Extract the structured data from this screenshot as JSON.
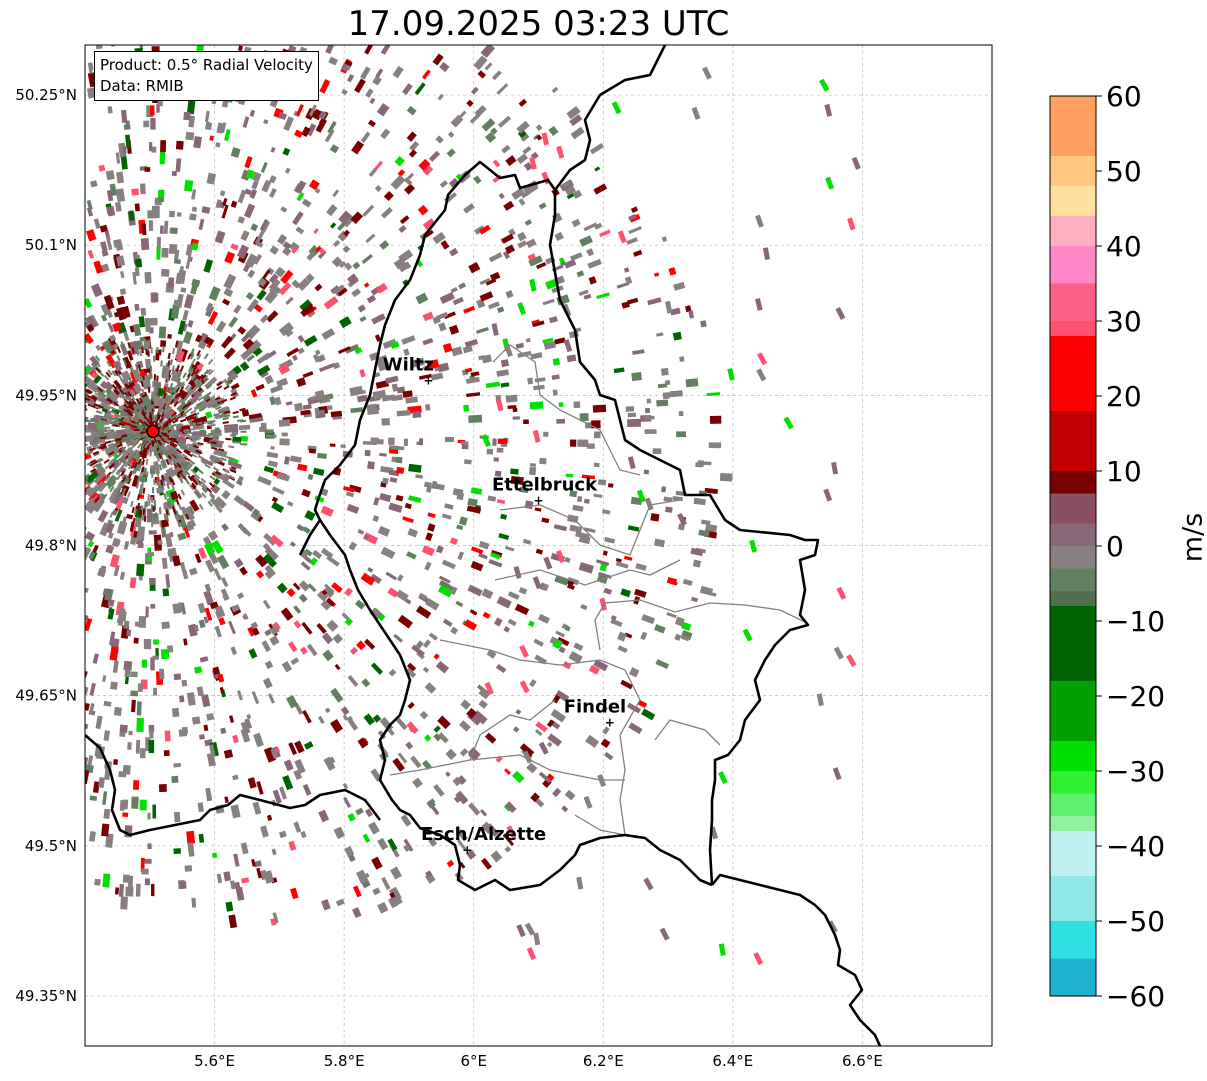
{
  "title": "17.09.2025 03:23 UTC",
  "info": {
    "product": "Product: 0.5° Radial Velocity",
    "data": "Data: RMIB"
  },
  "axes": {
    "lon_ticks": [
      {
        "value": 5.6,
        "label": "5.6°E"
      },
      {
        "value": 5.8,
        "label": "5.8°E"
      },
      {
        "value": 6.0,
        "label": "6°E"
      },
      {
        "value": 6.2,
        "label": "6.2°E"
      },
      {
        "value": 6.4,
        "label": "6.4°E"
      },
      {
        "value": 6.6,
        "label": "6.6°E"
      }
    ],
    "lat_ticks": [
      {
        "value": 50.25,
        "label": "50.25°N"
      },
      {
        "value": 50.1,
        "label": "50.1°N"
      },
      {
        "value": 49.95,
        "label": "49.95°N"
      },
      {
        "value": 49.8,
        "label": "49.8°N"
      },
      {
        "value": 49.65,
        "label": "49.65°N"
      },
      {
        "value": 49.5,
        "label": "49.5°N"
      },
      {
        "value": 49.35,
        "label": "49.35°N"
      }
    ],
    "lon_range": [
      5.4,
      6.8
    ],
    "lat_range": [
      49.3,
      50.3
    ]
  },
  "cities": [
    {
      "name": "Wiltz",
      "lon": 5.93,
      "lat": 49.965
    },
    {
      "name": "Ettelbruck",
      "lon": 6.1,
      "lat": 49.845
    },
    {
      "name": "Findel",
      "lon": 6.21,
      "lat": 49.623
    },
    {
      "name": "Esch/Alzette",
      "lon": 5.99,
      "lat": 49.496
    }
  ],
  "radar": {
    "lon": 5.505,
    "lat": 49.914
  },
  "colorbar": {
    "unit": "m/s",
    "min": -60,
    "max": 60,
    "ticks": [
      "60",
      "50",
      "40",
      "30",
      "20",
      "10",
      "0",
      "−10",
      "−20",
      "−30",
      "−40",
      "−50",
      "−60"
    ],
    "colors": {
      "orange": "#ffa060",
      "peach": "#ffe0a0",
      "pink": "#ff88c8",
      "rose": "#ff5070",
      "red": "#ff0000",
      "darkred": "#780000",
      "mauve": "#886878",
      "gray": "#888080",
      "grayGreen": "#608060",
      "darkgreen": "#006400",
      "green": "#00e000",
      "lightgreen": "#90f0a0",
      "lightcyan": "#c0f0f0",
      "cyan": "#30e0e0",
      "blue": "#2080c0"
    }
  }
}
